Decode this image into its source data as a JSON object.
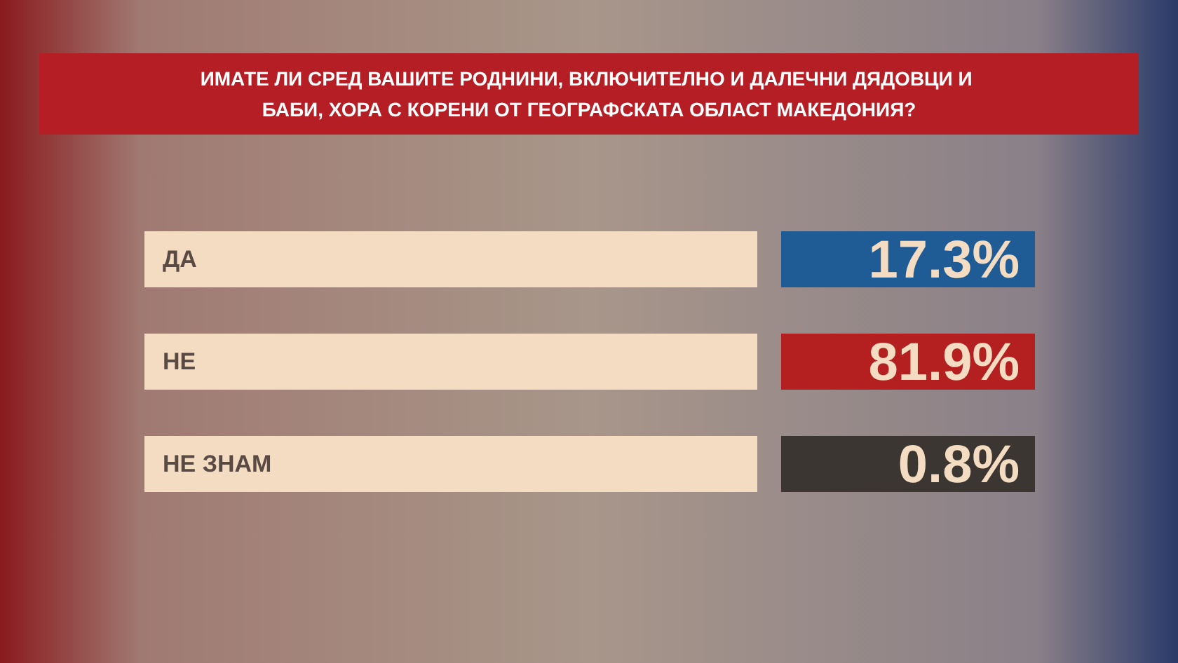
{
  "chart_data": {
    "type": "other",
    "title": "ИМАТЕ ЛИ СРЕД ВАШИТЕ РОДНИНИ, ВКЛЮЧИТЕЛНО И ДАЛЕЧНИ ДЯДОВЦИ И БАБИ, ХОРА С КОРЕНИ ОТ ГЕОГРАФСКАТА ОБЛАСТ МАКЕДОНИЯ?",
    "categories": [
      "ДА",
      "НЕ",
      "НЕ ЗНАМ"
    ],
    "values": [
      17.3,
      81.9,
      0.8
    ],
    "value_labels": [
      "17.3%",
      "81.9%",
      "0.8%"
    ]
  }
}
